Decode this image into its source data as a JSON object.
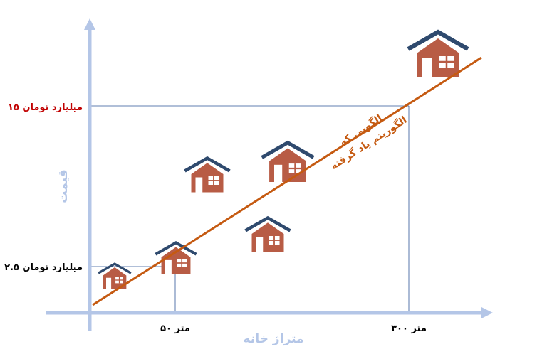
{
  "axes": {
    "x_label": "متراژ خانه",
    "y_label": "قیمت",
    "axis_color": "#b4c6e7"
  },
  "ticks": {
    "x_low": "۵۰ متر",
    "x_high": "۳۰۰ متر",
    "y_low": "۲.۵ میلیارد تومان",
    "y_high": "۱۵ میلیارد تومان",
    "y_high_color": "#c00000",
    "y_low_color": "#000000"
  },
  "trend": {
    "label_line1": "الگویی که",
    "label_line2": "الگوریتم یاد گرفته",
    "color": "#c55a11"
  },
  "house_style": {
    "body_color": "#b85c45",
    "roof_color": "#2f4a6e",
    "window_color": "#ffffff"
  },
  "houses": [
    {
      "id": "house-1"
    },
    {
      "id": "house-2"
    },
    {
      "id": "house-3"
    },
    {
      "id": "house-4"
    },
    {
      "id": "house-5"
    },
    {
      "id": "house-6"
    }
  ]
}
